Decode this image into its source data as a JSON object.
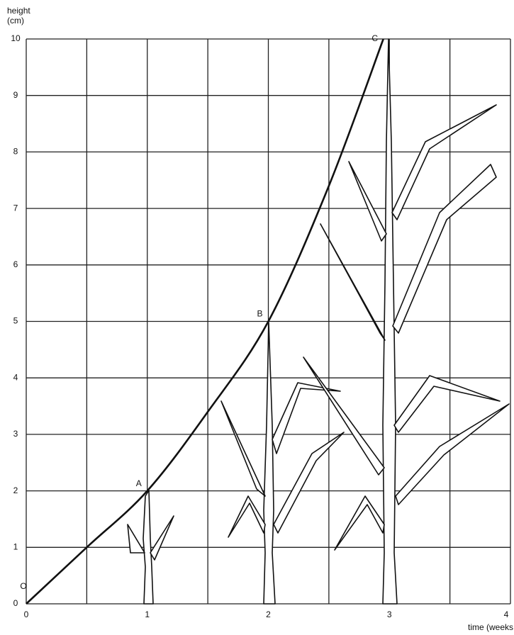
{
  "chart_data": {
    "type": "line",
    "ylabel": [
      "height",
      "(cm)"
    ],
    "xlabel": "time (weeks",
    "x": [
      0,
      0.5,
      1,
      1.5,
      2,
      2.5,
      2.95
    ],
    "series": [
      {
        "color": "#111111",
        "values": [
          0,
          1,
          2,
          3.4,
          5,
          7.4,
          10
        ]
      }
    ],
    "point_labels": [
      "O",
      null,
      "A",
      null,
      "B",
      null,
      "C"
    ],
    "xlim": [
      0,
      4
    ],
    "xticks": [
      0,
      1,
      2,
      3,
      4
    ],
    "x_minor_gridlines": [
      0.5,
      1.5,
      2.5,
      3.5
    ],
    "ylim": [
      0,
      10
    ],
    "yticks": [
      0,
      1,
      2,
      3,
      4,
      5,
      6,
      7,
      8,
      9,
      10
    ],
    "grid": true
  }
}
